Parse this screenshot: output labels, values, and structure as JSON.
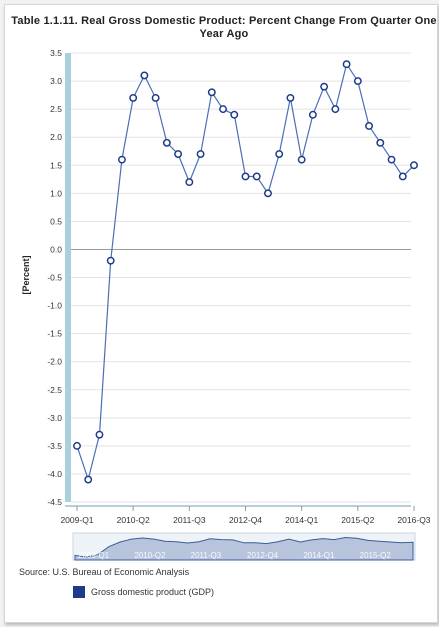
{
  "chart_data": {
    "type": "line",
    "title_lines": [
      "Table 1.1.11. Real Gross Domestic Product: Percent Change From Quarter One",
      "Year Ago"
    ],
    "ylabel": "[Percent]",
    "ylim": [
      -4.5,
      3.5
    ],
    "yticks": [
      "3.5",
      "3.0",
      "2.5",
      "2.0",
      "1.5",
      "1.0",
      "0.5",
      "0.0",
      "-0.5",
      "-1.0",
      "-1.5",
      "-2.0",
      "-2.5",
      "-3.0",
      "-3.5",
      "-4.0",
      "-4.5"
    ],
    "x_tick_labels": [
      "2009-Q1",
      "2010-Q2",
      "2011-Q3",
      "2012-Q4",
      "2014-Q1",
      "2015-Q2",
      "2016-Q3"
    ],
    "navigator_labels": [
      "2009-Q1",
      "2010-Q2",
      "2011-Q3",
      "2012-Q4",
      "2014-Q1",
      "2015-Q2"
    ],
    "grid": true,
    "legend_position": "bottom-left",
    "colors": {
      "line": "#4a6fb5",
      "marker_edge": "#1f3a8a",
      "axis_band": "#a9d0dd",
      "legend": "#1f3a8a"
    },
    "x": [
      "2009-Q1",
      "2009-Q2",
      "2009-Q3",
      "2009-Q4",
      "2010-Q1",
      "2010-Q2",
      "2010-Q3",
      "2010-Q4",
      "2011-Q1",
      "2011-Q2",
      "2011-Q3",
      "2011-Q4",
      "2012-Q1",
      "2012-Q2",
      "2012-Q3",
      "2012-Q4",
      "2013-Q1",
      "2013-Q2",
      "2013-Q3",
      "2013-Q4",
      "2014-Q1",
      "2014-Q2",
      "2014-Q3",
      "2014-Q4",
      "2015-Q1",
      "2015-Q2",
      "2015-Q3",
      "2015-Q4",
      "2016-Q1",
      "2016-Q2",
      "2016-Q3"
    ],
    "series": [
      {
        "name": "Gross domestic product (GDP)",
        "values": [
          -3.5,
          -4.1,
          -3.3,
          -0.2,
          1.6,
          2.7,
          3.1,
          2.7,
          1.9,
          1.7,
          1.2,
          1.7,
          2.8,
          2.5,
          2.4,
          1.3,
          1.3,
          1.0,
          1.7,
          2.7,
          1.6,
          2.4,
          2.9,
          2.5,
          3.3,
          3.0,
          2.2,
          1.9,
          1.6,
          1.3,
          1.5
        ]
      }
    ]
  },
  "source": "Source: U.S. Bureau of Economic Analysis",
  "legend": {
    "label": "Gross domestic product (GDP)"
  }
}
